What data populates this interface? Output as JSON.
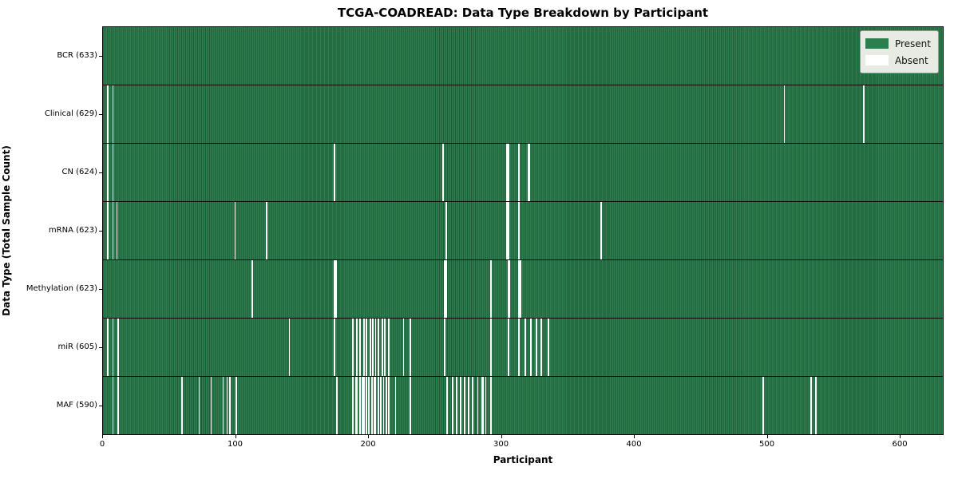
{
  "colors": {
    "present": "#2e7d4e",
    "present_edge": "#1d5c37",
    "absent": "#ffffff",
    "legend_bg": "#e7ebe4"
  },
  "chart_data": {
    "type": "heatmap",
    "title": "TCGA-COADREAD: Data Type Breakdown by Participant",
    "xlabel": "Participant",
    "ylabel": "Data Type (Total Sample Count)",
    "n_participants": 633,
    "x_ticks": [
      0,
      100,
      200,
      300,
      400,
      500,
      600
    ],
    "xlim": [
      0,
      633
    ],
    "grid": false,
    "legend": [
      "Present",
      "Absent"
    ],
    "legend_position": "upper right",
    "rows": [
      {
        "label": "BCR (633)",
        "name": "BCR",
        "count": 633,
        "absent": []
      },
      {
        "label": "Clinical (629)",
        "name": "Clinical",
        "count": 629,
        "absent": [
          3,
          7,
          513,
          573
        ]
      },
      {
        "label": "CN (624)",
        "name": "CN",
        "count": 624,
        "absent": [
          3,
          7,
          174,
          256,
          304,
          305,
          313,
          320,
          321
        ]
      },
      {
        "label": "mRNA (623)",
        "name": "mRNA",
        "count": 623,
        "absent": [
          3,
          7,
          10,
          99,
          123,
          258,
          304,
          305,
          313,
          375
        ]
      },
      {
        "label": "Methylation (623)",
        "name": "Methylation",
        "count": 623,
        "absent": [
          112,
          174,
          175,
          257,
          258,
          292,
          305,
          306,
          313,
          314
        ]
      },
      {
        "label": "miR (605)",
        "name": "miR",
        "count": 605,
        "absent": [
          3,
          7,
          11,
          140,
          174,
          188,
          191,
          193,
          196,
          198,
          201,
          203,
          205,
          207,
          210,
          212,
          215,
          226,
          231,
          257,
          292,
          305,
          313,
          318,
          322,
          326,
          330,
          335
        ]
      },
      {
        "label": "MAF (590)",
        "name": "MAF",
        "count": 590,
        "absent": [
          7,
          11,
          59,
          72,
          81,
          90,
          93,
          95,
          100,
          176,
          188,
          190,
          191,
          193,
          195,
          196,
          198,
          200,
          202,
          204,
          205,
          207,
          209,
          211,
          213,
          215,
          220,
          231,
          259,
          263,
          266,
          269,
          272,
          275,
          278,
          282,
          285,
          286,
          288,
          292,
          497,
          533,
          537
        ]
      }
    ]
  }
}
